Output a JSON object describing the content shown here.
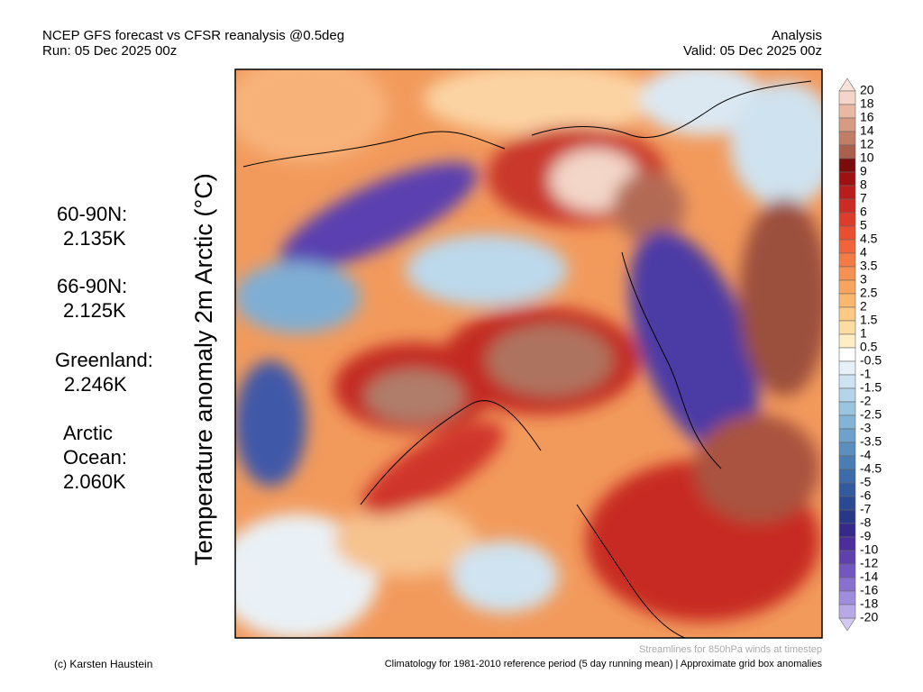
{
  "header": {
    "title": "NCEP GFS forecast vs CFSR reanalysis @0.5deg",
    "run": "Run: 05 Dec 2025 00z",
    "mode": "Analysis",
    "valid": "Valid: 05 Dec 2025 00z"
  },
  "y_label": "Temperature anomaly 2m Arctic (°C)",
  "stats": [
    {
      "region": "60-90N:",
      "value": "2.135K"
    },
    {
      "region": "66-90N:",
      "value": "2.125K"
    },
    {
      "region": "Greenland:",
      "value": "2.246K"
    },
    {
      "region": "Arctic Ocean:",
      "value": "2.060K"
    }
  ],
  "colorbar": {
    "labels": [
      20,
      18,
      16,
      14,
      12,
      10,
      9,
      8,
      7,
      6,
      5,
      4.5,
      4,
      3.5,
      3,
      2.5,
      2,
      1.5,
      1,
      0.5,
      -0.5,
      -1,
      -1.5,
      -2,
      -2.5,
      -3,
      -3.5,
      -4,
      -4.5,
      -5,
      -6,
      -7,
      -8,
      -9,
      -10,
      -12,
      -14,
      -16,
      -18,
      -20
    ],
    "colors": [
      "#f4d5c8",
      "#e8b8a3",
      "#d79a82",
      "#c27d66",
      "#a9604c",
      "#7a0c0c",
      "#9e1012",
      "#b81c1c",
      "#cc2b23",
      "#de3c2b",
      "#e94e31",
      "#f1633b",
      "#f57b46",
      "#f79053",
      "#f9a560",
      "#fab86f",
      "#fbca85",
      "#fcdda1",
      "#fdeec6",
      "#ffffff",
      "#e5f0f8",
      "#cde3f1",
      "#b4d4ea",
      "#9bc4e0",
      "#83b3d6",
      "#6ea1cb",
      "#5b8fc0",
      "#4b7db5",
      "#3e6baa",
      "#335a9e",
      "#2b4992",
      "#293886",
      "#36298a",
      "#4b2e9b",
      "#5f41ae",
      "#7257c0",
      "#8870cf",
      "#a08cdc",
      "#b8a8e8"
    ],
    "over_color": "#f6e2d9",
    "under_color": "#d2c8f2"
  },
  "footer": {
    "streamlines": "Streamlines for 850hPa winds at timestep",
    "credit": "(c) Karsten Haustein",
    "climatology": "Climatology for 1981-2010 reference period (5 day running mean) | Approximate grid box anomalies"
  }
}
